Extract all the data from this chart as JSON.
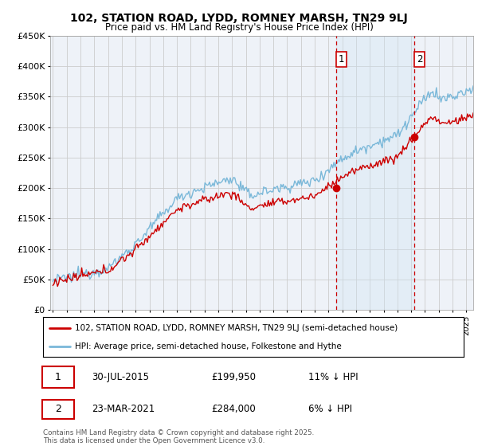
{
  "title": "102, STATION ROAD, LYDD, ROMNEY MARSH, TN29 9LJ",
  "subtitle": "Price paid vs. HM Land Registry's House Price Index (HPI)",
  "ylim": [
    0,
    450000
  ],
  "yticks": [
    0,
    50000,
    100000,
    150000,
    200000,
    250000,
    300000,
    350000,
    400000,
    450000
  ],
  "ytick_labels": [
    "£0",
    "£50K",
    "£100K",
    "£150K",
    "£200K",
    "£250K",
    "£300K",
    "£350K",
    "£400K",
    "£450K"
  ],
  "xlim_start": 1994.8,
  "xlim_end": 2025.5,
  "hpi_color": "#7ab8d9",
  "price_color": "#cc0000",
  "marker1_x": 2015.58,
  "marker1_y": 199950,
  "marker2_x": 2021.23,
  "marker2_y": 284000,
  "legend_line1": "102, STATION ROAD, LYDD, ROMNEY MARSH, TN29 9LJ (semi-detached house)",
  "legend_line2": "HPI: Average price, semi-detached house, Folkestone and Hythe",
  "marker1_date": "30-JUL-2015",
  "marker1_price": "£199,950",
  "marker1_hpi": "11% ↓ HPI",
  "marker2_date": "23-MAR-2021",
  "marker2_price": "£284,000",
  "marker2_hpi": "6% ↓ HPI",
  "footer": "Contains HM Land Registry data © Crown copyright and database right 2025.\nThis data is licensed under the Open Government Licence v3.0.",
  "bg_color": "#ffffff",
  "plot_bg_color": "#eef2f8",
  "shade_color": "#d0e4f5",
  "grid_color": "#cccccc",
  "vline_color": "#cc0000"
}
